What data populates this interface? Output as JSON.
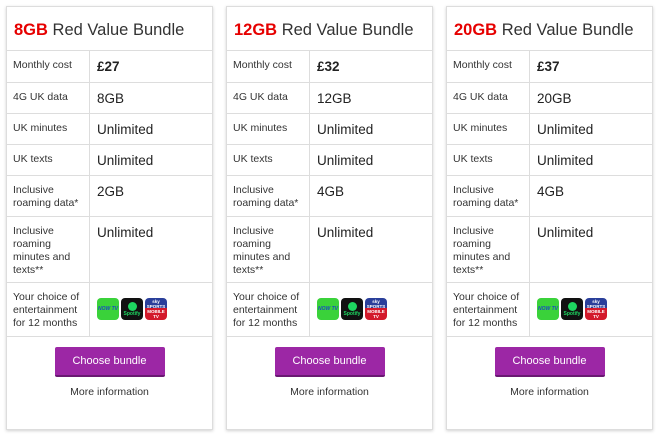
{
  "bundle_suffix": "Red Value Bundle",
  "row_labels": [
    "Monthly cost",
    "4G UK data",
    "UK minutes",
    "UK texts",
    "Inclusive roaming data*",
    "Inclusive roaming minutes and texts**",
    "Your choice of entertainment for 12 months"
  ],
  "entertainment_logos": [
    {
      "icon": "now-tv-logo",
      "text": "NOW TV",
      "color": "#3ad23a"
    },
    {
      "icon": "spotify-logo",
      "text": "Spotify",
      "color": "#111111"
    },
    {
      "icon": "sky-sports-logo",
      "text": "sky SPORTS MOBILE TV",
      "color": "#d3192b"
    }
  ],
  "button_label": "Choose bundle",
  "more_info_label": "More information",
  "colors": {
    "accent_red": "#e60000",
    "button_purple": "#9c27a5"
  },
  "bundles": [
    {
      "size": "8GB",
      "values": [
        "£27",
        "8GB",
        "Unlimited",
        "Unlimited",
        "2GB",
        "Unlimited"
      ]
    },
    {
      "size": "12GB",
      "values": [
        "£32",
        "12GB",
        "Unlimited",
        "Unlimited",
        "4GB",
        "Unlimited"
      ]
    },
    {
      "size": "20GB",
      "values": [
        "£37",
        "20GB",
        "Unlimited",
        "Unlimited",
        "4GB",
        "Unlimited"
      ]
    }
  ]
}
